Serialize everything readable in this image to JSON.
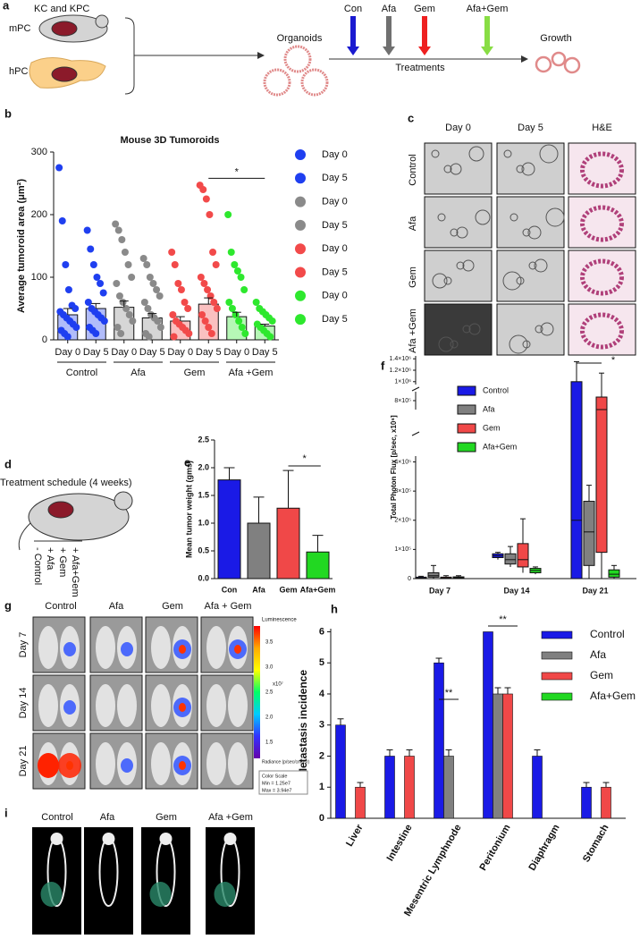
{
  "panel_labels": [
    "a",
    "b",
    "c",
    "d",
    "e",
    "f",
    "g",
    "h",
    "i"
  ],
  "schematic": {
    "models": "KC and KPC",
    "mouse": "mPC",
    "human": "hPC",
    "organoids": "Organoids",
    "treatments": [
      "Con",
      "Afa",
      "Gem",
      "Afa+Gem"
    ],
    "treatments_label": "Treatments",
    "growth": "Growth"
  },
  "organoid_images": {
    "columns": [
      "Day 0",
      "Day 5",
      "H&E"
    ],
    "rows": [
      "Control",
      "Afa",
      "Gem",
      "Afa +Gem"
    ]
  },
  "schedule": {
    "title": "Treatment schedule (4 weeks)",
    "groups": [
      "- Control",
      "+ Afa",
      "+ Gem",
      "+ Afa+Gem"
    ]
  },
  "imaging": {
    "columns": [
      "Control",
      "Afa",
      "Gem",
      "Afa + Gem"
    ],
    "rows": [
      "Day 7",
      "Day 14",
      "Day 21"
    ],
    "colorbar": {
      "title": "Luminescence",
      "ticks": [
        "3.5",
        "3.0",
        "2.5",
        "2.0",
        "1.5"
      ],
      "exponent": "x10⁷",
      "unit": "Radiance (p/sec/cm²/sr)",
      "scale_title": "Color Scale",
      "min": "Min = 1.25e7",
      "max": "Max = 3.94e7"
    }
  },
  "ct_images": {
    "labels": [
      "Control",
      "Afa",
      "Gem",
      "Afa +Gem"
    ]
  },
  "chart_data": [
    {
      "type": "bar-scatter",
      "title": "Mouse 3D Tumoroids",
      "y_label": "Average tumoroid area (μm²)",
      "categories": [
        "Day 0",
        "Day 5",
        "Day 0",
        "Day 5",
        "Day 0",
        "Day 5",
        "Day 0",
        "Day 5"
      ],
      "groups": [
        "Control",
        "Afa",
        "Gem",
        "Afa +Gem"
      ],
      "values": [
        40,
        50,
        52,
        35,
        30,
        57,
        37,
        22
      ],
      "errors": [
        10,
        8,
        10,
        7,
        7,
        10,
        7,
        3
      ],
      "points": [
        [
          275,
          190,
          120,
          80,
          55,
          50,
          45,
          40,
          35,
          30,
          25,
          20,
          15,
          10,
          5
        ],
        [
          175,
          145,
          120,
          100,
          90,
          75,
          60,
          50,
          45,
          40,
          35,
          30,
          20,
          15,
          10
        ],
        [
          185,
          175,
          160,
          140,
          120,
          100,
          90,
          70,
          60,
          50,
          40,
          30,
          20,
          10
        ],
        [
          130,
          120,
          100,
          90,
          80,
          70,
          60,
          50,
          40,
          35,
          30,
          20,
          10,
          5
        ],
        [
          140,
          120,
          90,
          80,
          60,
          50,
          40,
          30,
          25,
          20,
          15,
          10,
          5
        ],
        [
          247,
          240,
          225,
          200,
          140,
          120,
          100,
          90,
          80,
          70,
          60,
          50,
          40,
          30,
          20,
          10
        ],
        [
          200,
          140,
          120,
          110,
          100,
          80,
          60,
          50,
          40,
          30,
          20,
          10
        ],
        [
          60,
          50,
          45,
          40,
          35,
          30,
          25,
          20,
          15,
          10,
          5
        ]
      ],
      "legend": [
        {
          "name": "Day 0",
          "color": "#1f3ff0"
        },
        {
          "name": "Day 5",
          "color": "#1f3ff0"
        },
        {
          "name": "Day 0",
          "color": "#8a8a8a"
        },
        {
          "name": "Day 5",
          "color": "#8a8a8a"
        },
        {
          "name": "Day 0",
          "color": "#f24a4a"
        },
        {
          "name": "Day 5",
          "color": "#f24a4a"
        },
        {
          "name": "Day 0",
          "color": "#2ee82e"
        },
        {
          "name": "Day 5",
          "color": "#2ee82e"
        }
      ],
      "ylim": [
        0,
        300
      ],
      "yticks": [
        0,
        100,
        200,
        300
      ],
      "significance": [
        "*"
      ]
    },
    {
      "type": "bar",
      "y_label": "Mean tumor weight (gms)",
      "categories": [
        "Con",
        "Afa",
        "Gem",
        "Afa+Gem"
      ],
      "values": [
        1.78,
        1.0,
        1.27,
        0.48
      ],
      "errors": [
        0.22,
        0.47,
        0.68,
        0.3
      ],
      "colors": [
        "#1a1ae6",
        "#808080",
        "#f04848",
        "#22d822"
      ],
      "ylim": [
        0,
        2.5
      ],
      "yticks": [
        {
          "value": 0,
          "label": "0.0"
        },
        {
          "value": 0.5,
          "label": "0.5"
        },
        {
          "value": 1,
          "label": "1.0"
        },
        {
          "value": 1.5,
          "label": "1.5"
        },
        {
          "value": 2,
          "label": "2.0"
        },
        {
          "value": 2.5,
          "label": "2.5"
        }
      ],
      "significance": [
        "*"
      ]
    },
    {
      "type": "box",
      "y_label": "Total Photon Flux [p/sec, x10⁶]",
      "categories": [
        "Day 7",
        "Day 14",
        "Day 21"
      ],
      "series": [
        {
          "name": "Control",
          "color": "#1a1ae6",
          "boxes": [
            [
              0,
              0,
              2000,
              5000,
              8000
            ],
            [
              65000,
              72000,
              78000,
              85000,
              90000
            ],
            [
              0,
              0,
              200000,
              1000000,
              1350000
            ]
          ]
        },
        {
          "name": "Afa",
          "color": "#808080",
          "boxes": [
            [
              0,
              5000,
              10000,
              20000,
              45000
            ],
            [
              40000,
              50000,
              65000,
              85000,
              110000
            ],
            [
              0,
              45000,
              160000,
              265000,
              320000
            ]
          ]
        },
        {
          "name": "Gem",
          "color": "#f04848",
          "boxes": [
            [
              0,
              0,
              2000,
              5000,
              10000
            ],
            [
              20000,
              40000,
              65000,
              120000,
              205000
            ],
            [
              0,
              90000,
              750000,
              820000,
              1150000
            ]
          ]
        },
        {
          "name": "Afa+Gem",
          "color": "#22d822",
          "boxes": [
            [
              0,
              1000,
              3000,
              6000,
              10000
            ],
            [
              15000,
              20000,
              28000,
              35000,
              40000
            ],
            [
              0,
              5000,
              15000,
              30000,
              45000
            ]
          ]
        }
      ],
      "ysegments": [
        [
          0,
          420000
        ],
        [
          750000,
          850000
        ],
        [
          950000,
          1450000
        ]
      ],
      "yticks": [
        0,
        {
          "value": 100000,
          "label": "1×10⁵"
        },
        {
          "value": 200000,
          "label": "2×10⁵"
        },
        {
          "value": 300000,
          "label": "3×10⁵"
        },
        {
          "value": 400000,
          "label": "4×10⁵"
        },
        {
          "value": 800000,
          "label": "8×10⁵"
        },
        {
          "value": 1000000,
          "label": "1×10⁶"
        },
        {
          "value": 1200000,
          "label": "1.2×10⁶"
        },
        {
          "value": 1400000,
          "label": "1.4×10⁶"
        }
      ],
      "significance": [
        "*"
      ]
    },
    {
      "type": "grouped-bar",
      "y_label": "Metastasis incidence",
      "categories": [
        "Liver",
        "Intestine",
        "Mesentric Lymphnode",
        "Peritonium",
        "Diaphragm",
        "Stomach"
      ],
      "series": [
        {
          "name": "Control",
          "color": "#1a1ae6",
          "values": [
            3,
            2,
            5,
            6,
            2,
            1
          ],
          "errors": [
            0.2,
            0.2,
            0.15,
            null,
            0.2,
            0.15
          ]
        },
        {
          "name": "Afa",
          "color": "#808080",
          "values": [
            0,
            0,
            2,
            4,
            0,
            0
          ],
          "errors": [
            null,
            null,
            0.2,
            0.2,
            null,
            null
          ]
        },
        {
          "name": "Gem",
          "color": "#f04848",
          "values": [
            1,
            2,
            0,
            4,
            0,
            1
          ],
          "errors": [
            0.15,
            0.2,
            null,
            0.2,
            null,
            0.15
          ]
        },
        {
          "name": "Afa+Gem",
          "color": "#22d822",
          "values": [
            0,
            0,
            0,
            0,
            0,
            0
          ],
          "errors": [
            null,
            null,
            null,
            null,
            null,
            null
          ]
        }
      ],
      "ylim": [
        0,
        6.1
      ],
      "yticks": [
        0,
        1,
        2,
        3,
        4,
        5,
        6
      ],
      "significance": [
        "**",
        "**"
      ]
    }
  ]
}
